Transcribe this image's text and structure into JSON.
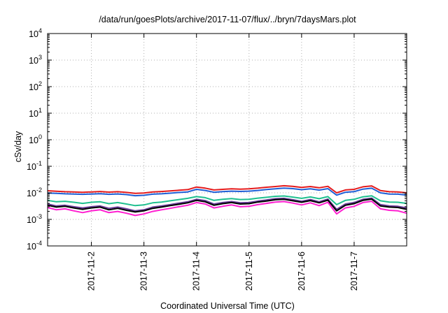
{
  "chart_data": {
    "type": "line",
    "title": "/data/run/goesPlots/archive/2017-11-07/flux/../bryn/7daysMars.plot",
    "xlabel": "Coordinated Universal Time (UTC)",
    "ylabel": "cSv/day",
    "y_scale": "log",
    "ylim": [
      0.0001,
      10000
    ],
    "xlim": [
      "2017-11-01T04:00",
      "2017-11-08T00:00"
    ],
    "grid": true,
    "y_ticks": [
      {
        "value": 0.0001,
        "base": "10",
        "exp": "-4"
      },
      {
        "value": 0.001,
        "base": "10",
        "exp": "-3"
      },
      {
        "value": 0.01,
        "base": "10",
        "exp": "-2"
      },
      {
        "value": 0.1,
        "base": "10",
        "exp": "-1"
      },
      {
        "value": 1,
        "base": "10",
        "exp": "0"
      },
      {
        "value": 10,
        "base": "10",
        "exp": "1"
      },
      {
        "value": 100,
        "base": "10",
        "exp": "2"
      },
      {
        "value": 1000,
        "base": "10",
        "exp": "3"
      },
      {
        "value": 10000,
        "base": "10",
        "exp": "4"
      }
    ],
    "x_ticks": [
      {
        "value": "2017-11-02T00:00",
        "label": "2017-11-2"
      },
      {
        "value": "2017-11-03T00:00",
        "label": "2017-11-3"
      },
      {
        "value": "2017-11-04T00:00",
        "label": "2017-11-4"
      },
      {
        "value": "2017-11-05T00:00",
        "label": "2017-11-5"
      },
      {
        "value": "2017-11-06T00:00",
        "label": "2017-11-6"
      },
      {
        "value": "2017-11-07T00:00",
        "label": "2017-11-7"
      }
    ],
    "x": [
      "2017-11-01T04:00",
      "2017-11-01T08:00",
      "2017-11-01T12:00",
      "2017-11-01T16:00",
      "2017-11-01T20:00",
      "2017-11-02T00:00",
      "2017-11-02T04:00",
      "2017-11-02T08:00",
      "2017-11-02T12:00",
      "2017-11-02T16:00",
      "2017-11-02T20:00",
      "2017-11-03T00:00",
      "2017-11-03T04:00",
      "2017-11-03T08:00",
      "2017-11-03T12:00",
      "2017-11-03T16:00",
      "2017-11-03T20:00",
      "2017-11-04T00:00",
      "2017-11-04T04:00",
      "2017-11-04T08:00",
      "2017-11-04T12:00",
      "2017-11-04T16:00",
      "2017-11-04T20:00",
      "2017-11-05T00:00",
      "2017-11-05T04:00",
      "2017-11-05T08:00",
      "2017-11-05T12:00",
      "2017-11-05T16:00",
      "2017-11-05T20:00",
      "2017-11-06T00:00",
      "2017-11-06T04:00",
      "2017-11-06T08:00",
      "2017-11-06T12:00",
      "2017-11-06T16:00",
      "2017-11-06T20:00",
      "2017-11-07T00:00",
      "2017-11-07T04:00",
      "2017-11-07T08:00",
      "2017-11-07T12:00",
      "2017-11-07T16:00",
      "2017-11-07T20:00",
      "2017-11-08T00:00"
    ],
    "series": [
      {
        "color": "#e41a1c",
        "values": [
          0.012,
          0.0115,
          0.011,
          0.0108,
          0.0105,
          0.0108,
          0.0112,
          0.0106,
          0.011,
          0.0104,
          0.0095,
          0.0098,
          0.0108,
          0.0112,
          0.0118,
          0.0125,
          0.0132,
          0.0165,
          0.015,
          0.0128,
          0.0135,
          0.0142,
          0.0138,
          0.0142,
          0.015,
          0.0162,
          0.0172,
          0.0184,
          0.0176,
          0.016,
          0.0172,
          0.0155,
          0.0176,
          0.01,
          0.0128,
          0.0135,
          0.0168,
          0.0182,
          0.0122,
          0.011,
          0.0108,
          0.01
        ]
      },
      {
        "color": "#1f5fd6",
        "values": [
          0.0098,
          0.0095,
          0.0092,
          0.009,
          0.0088,
          0.009,
          0.0093,
          0.0088,
          0.0091,
          0.0086,
          0.0078,
          0.0081,
          0.0089,
          0.0092,
          0.0097,
          0.0103,
          0.0108,
          0.0135,
          0.0123,
          0.0105,
          0.0111,
          0.0116,
          0.0113,
          0.0116,
          0.0123,
          0.0133,
          0.0141,
          0.0151,
          0.0144,
          0.0131,
          0.0141,
          0.0127,
          0.0144,
          0.0082,
          0.0105,
          0.0111,
          0.0138,
          0.0149,
          0.01,
          0.009,
          0.0089,
          0.0082
        ]
      },
      {
        "color": "#1fbf8f",
        "values": [
          0.0052,
          0.0046,
          0.0048,
          0.0044,
          0.004,
          0.0044,
          0.0046,
          0.0039,
          0.0043,
          0.0038,
          0.0033,
          0.0035,
          0.0042,
          0.0045,
          0.005,
          0.0056,
          0.0062,
          0.0072,
          0.0066,
          0.0052,
          0.0057,
          0.0061,
          0.0056,
          0.0057,
          0.0063,
          0.0068,
          0.0074,
          0.0076,
          0.0069,
          0.0062,
          0.007,
          0.006,
          0.0072,
          0.0036,
          0.0052,
          0.0057,
          0.0071,
          0.0077,
          0.005,
          0.0045,
          0.0044,
          0.004
        ]
      },
      {
        "color": "#6a3d9a",
        "values": [
          0.0038,
          0.0032,
          0.0034,
          0.003,
          0.0027,
          0.003,
          0.0032,
          0.0026,
          0.0029,
          0.0025,
          0.0021,
          0.0023,
          0.0029,
          0.0032,
          0.0036,
          0.0041,
          0.0046,
          0.0057,
          0.0051,
          0.0038,
          0.0043,
          0.0047,
          0.0042,
          0.0043,
          0.0049,
          0.0054,
          0.006,
          0.0062,
          0.0055,
          0.0048,
          0.0056,
          0.0046,
          0.0058,
          0.0024,
          0.0038,
          0.0043,
          0.0057,
          0.0063,
          0.0036,
          0.0032,
          0.0031,
          0.0027
        ]
      },
      {
        "color": "#000000",
        "values": [
          0.0034,
          0.0029,
          0.0031,
          0.0027,
          0.0024,
          0.0027,
          0.0029,
          0.0023,
          0.0026,
          0.0022,
          0.0019,
          0.0021,
          0.0026,
          0.0029,
          0.0033,
          0.0037,
          0.0042,
          0.0052,
          0.0046,
          0.0034,
          0.0039,
          0.0043,
          0.0038,
          0.0039,
          0.0045,
          0.0049,
          0.0055,
          0.0057,
          0.005,
          0.0044,
          0.0051,
          0.0042,
          0.0053,
          0.0021,
          0.0034,
          0.0039,
          0.0052,
          0.0058,
          0.0032,
          0.0029,
          0.0028,
          0.0024
        ]
      },
      {
        "color": "#ff1fd0",
        "values": [
          0.0028,
          0.0023,
          0.0025,
          0.0021,
          0.0018,
          0.0021,
          0.0023,
          0.0018,
          0.002,
          0.0017,
          0.0014,
          0.0016,
          0.002,
          0.0023,
          0.0026,
          0.003,
          0.0034,
          0.0043,
          0.0038,
          0.0027,
          0.0031,
          0.0035,
          0.003,
          0.0031,
          0.0036,
          0.004,
          0.0045,
          0.0047,
          0.0041,
          0.0035,
          0.0042,
          0.0033,
          0.0044,
          0.0016,
          0.0027,
          0.0031,
          0.0043,
          0.0048,
          0.0025,
          0.0022,
          0.0021,
          0.0017
        ]
      }
    ]
  }
}
